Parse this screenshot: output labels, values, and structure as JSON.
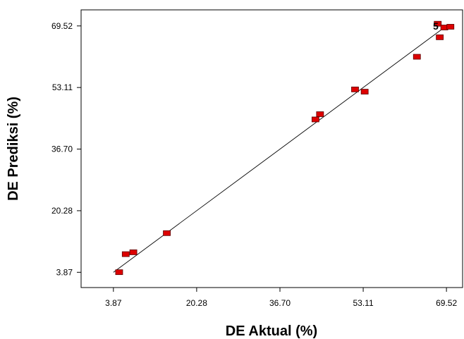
{
  "chart_data": {
    "type": "scatter",
    "title": "",
    "xlabel": "DE Aktual (%)",
    "ylabel": "DE Prediksi (%)",
    "xlim": [
      -2.5,
      72.7
    ],
    "ylim": [
      -0.2,
      73.8
    ],
    "x_ticks": [
      "3.87",
      "20.28",
      "36.70",
      "53.11",
      "69.52"
    ],
    "y_ticks": [
      "3.87",
      "20.28",
      "36.70",
      "53.11",
      "69.52"
    ],
    "grid": false,
    "legend": "none",
    "points": [
      {
        "x": 5.0,
        "y": 3.9
      },
      {
        "x": 6.3,
        "y": 8.7
      },
      {
        "x": 7.8,
        "y": 9.2
      },
      {
        "x": 14.4,
        "y": 14.3
      },
      {
        "x": 43.7,
        "y": 44.6
      },
      {
        "x": 44.6,
        "y": 46.0
      },
      {
        "x": 51.5,
        "y": 52.6
      },
      {
        "x": 53.4,
        "y": 52.0
      },
      {
        "x": 63.7,
        "y": 61.3
      },
      {
        "x": 67.8,
        "y": 70.1
      },
      {
        "x": 68.2,
        "y": 66.5
      },
      {
        "x": 69.1,
        "y": 69.1
      },
      {
        "x": 70.3,
        "y": 69.3
      }
    ],
    "fit_line": {
      "x": [
        3.87,
        69.52
      ],
      "y": [
        3.87,
        69.52
      ]
    },
    "annotations": [
      {
        "text": "5",
        "x": 67.4,
        "y": 69.5
      }
    ],
    "colors": {
      "marker_fill": "#dd0000",
      "marker_stroke": "#5a0000",
      "line": "#000000",
      "axis": "#000000"
    }
  }
}
